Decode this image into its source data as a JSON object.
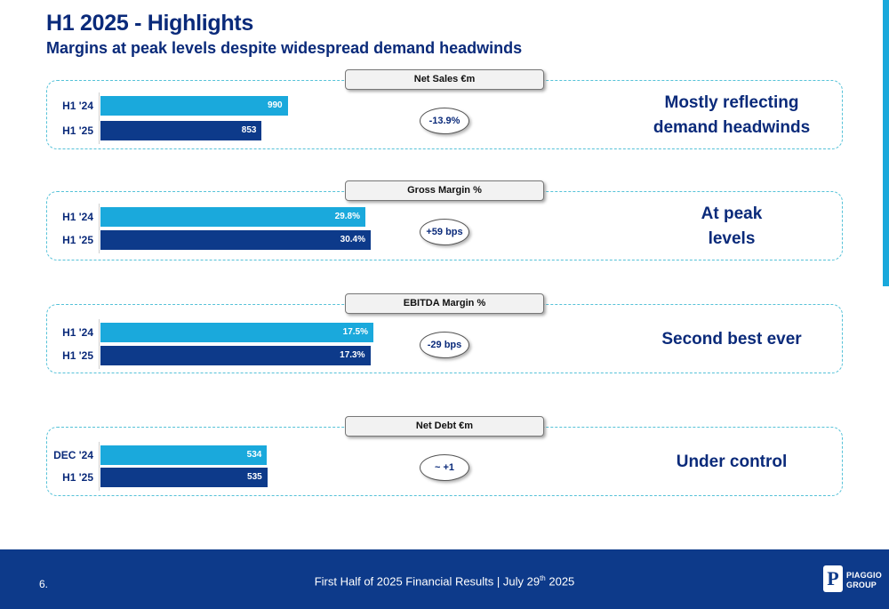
{
  "header": {
    "title": "H1 2025 - Highlights",
    "subtitle": "Margins at peak levels despite widespread demand headwinds"
  },
  "colors": {
    "bar_prev": "#1aa9dc",
    "bar_curr": "#0d3a8a",
    "accent": "#1aa9dc"
  },
  "chart_data": [
    {
      "type": "bar",
      "orientation": "horizontal",
      "title": "Net Sales €m",
      "categories": [
        "H1 '24",
        "H1 '25"
      ],
      "values": [
        990,
        853
      ],
      "value_labels": [
        "990",
        "853"
      ],
      "xlim": [
        0,
        2350
      ],
      "change": "-13.9%",
      "commentary": [
        "Mostly reflecting",
        "demand headwinds"
      ]
    },
    {
      "type": "bar",
      "orientation": "horizontal",
      "title": "Gross Margin %",
      "categories": [
        "H1 '24",
        "H1 '25"
      ],
      "values": [
        29.8,
        30.4
      ],
      "value_labels": [
        "29.8%",
        "30.4%"
      ],
      "xlim": [
        0,
        50
      ],
      "change": "+59 bps",
      "commentary": [
        "At peak",
        "levels"
      ]
    },
    {
      "type": "bar",
      "orientation": "horizontal",
      "title": "EBITDA Margin %",
      "categories": [
        "H1 '24",
        "H1 '25"
      ],
      "values": [
        17.5,
        17.3
      ],
      "value_labels": [
        "17.5%",
        "17.3%"
      ],
      "xlim": [
        0,
        28.5
      ],
      "change": "-29 bps",
      "commentary": [
        "Second best ever"
      ]
    },
    {
      "type": "bar",
      "orientation": "horizontal",
      "title": "Net Debt €m",
      "categories": [
        "DEC '24",
        "H1 '25"
      ],
      "values": [
        534,
        535
      ],
      "value_labels": [
        "534",
        "535"
      ],
      "xlim": [
        0,
        1425
      ],
      "change": "~ +1",
      "commentary": [
        "Under control"
      ]
    }
  ],
  "footer": {
    "page_number": "6.",
    "text_before": "First Half of 2025 Financial Results  | July 29",
    "text_sup": "th",
    "text_after": " 2025",
    "logo_line1": "PIAGGIO",
    "logo_line2": "GROUP",
    "logo_mark": "P"
  }
}
